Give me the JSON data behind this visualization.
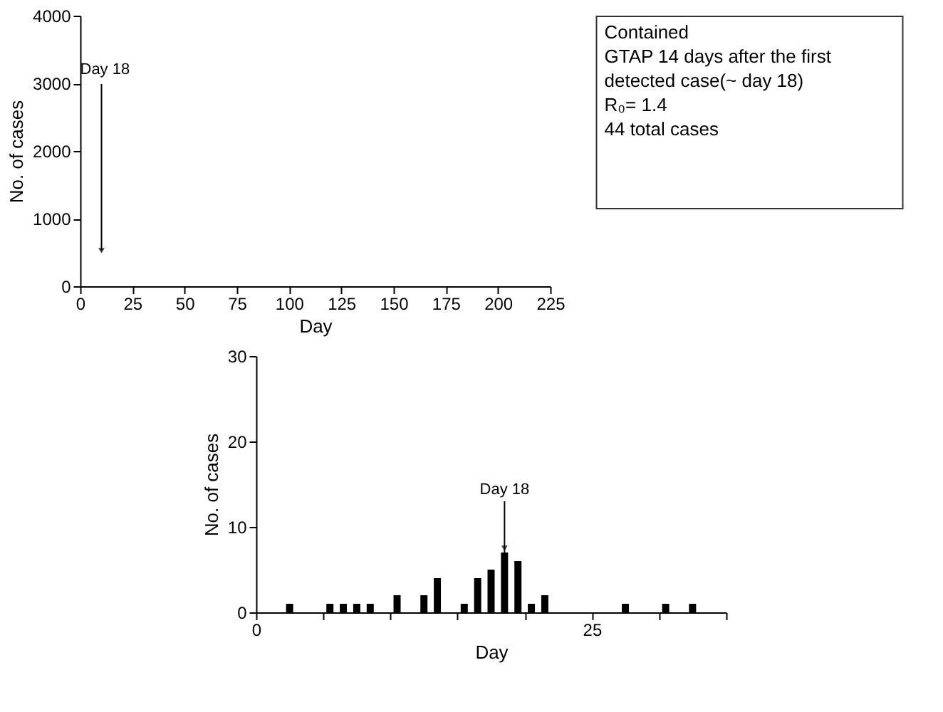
{
  "chart_data": [
    {
      "type": "bar",
      "xlabel": "Day",
      "ylabel": "No. of cases",
      "xlim": [
        0,
        225
      ],
      "xticks": [
        0,
        25,
        50,
        75,
        100,
        125,
        150,
        175,
        200,
        225
      ],
      "ylim": [
        0,
        4000
      ],
      "yticks": [
        0,
        1000,
        2000,
        3000,
        4000
      ],
      "grid": false,
      "annotations": [
        "Day 18",
        "Contained",
        "GTAP 14 days after the first detected case(~ day 18)",
        "R₀= 1.4",
        "44 total cases"
      ]
    },
    {
      "type": "bar",
      "xlabel": "Day",
      "ylabel": "No. of cases",
      "color": "#000000",
      "grid": false,
      "x": [
        2.5,
        5.5,
        6.5,
        7.5,
        8.5,
        10.5,
        12.5,
        13.5,
        15.5,
        16.5,
        17.5,
        18.5,
        19.5,
        20.5,
        21.5,
        27.5,
        30.5,
        32.5
      ],
      "values": [
        1,
        1,
        1,
        1,
        1,
        2,
        2,
        4,
        1,
        4,
        5,
        7,
        6,
        1,
        2,
        1,
        1,
        1
      ],
      "xlim": [
        0,
        35
      ],
      "xticks": [
        0,
        {
          "value": 5,
          "label": null
        },
        {
          "value": 10,
          "label": null
        },
        {
          "value": 15,
          "label": null
        },
        {
          "value": 20,
          "label": null
        },
        25,
        {
          "value": 30,
          "label": null
        },
        {
          "value": 35,
          "label": null
        }
      ],
      "ylim": [
        0,
        30
      ],
      "yticks": [
        0,
        10,
        20,
        30
      ],
      "annotations": [
        {
          "text": "Day 18",
          "x": 18.5,
          "y": 7
        }
      ]
    }
  ]
}
